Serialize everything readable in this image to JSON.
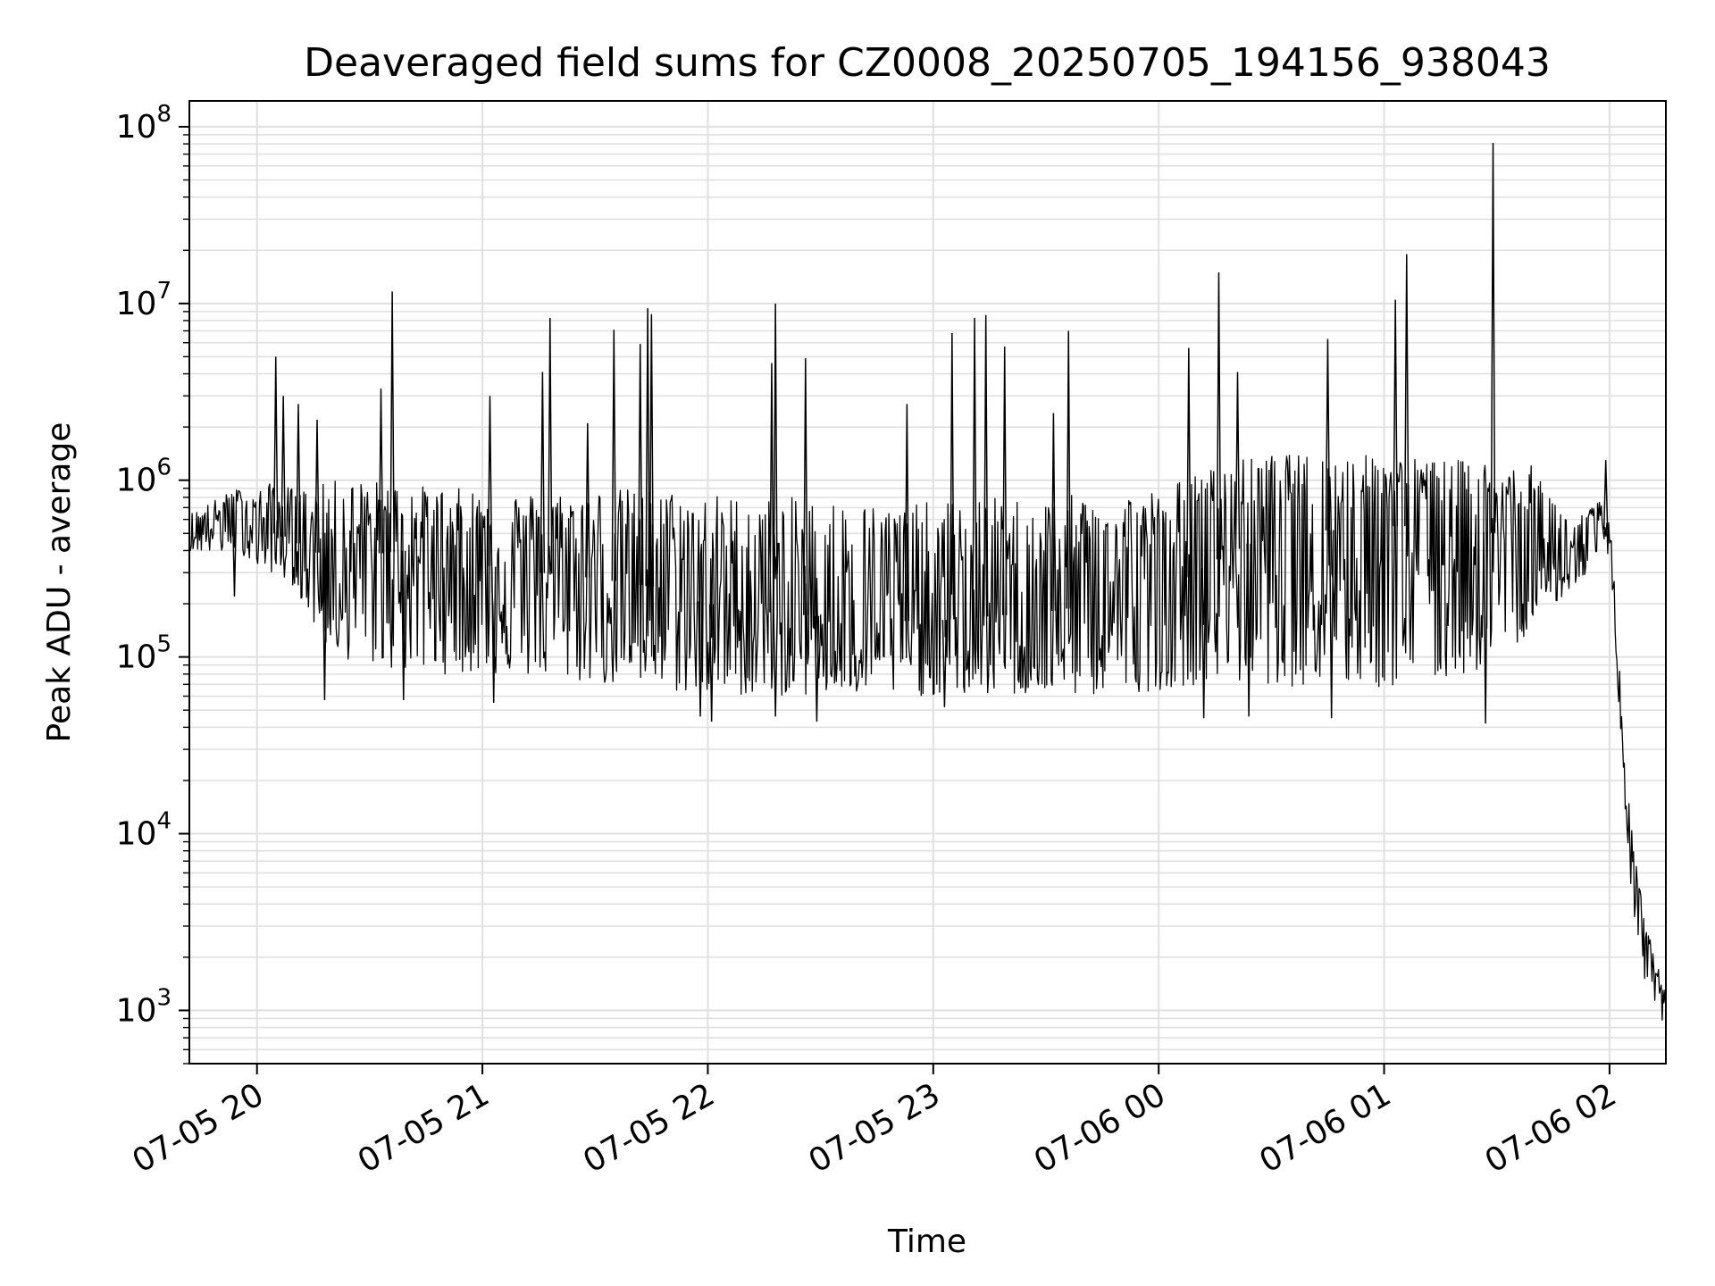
{
  "chart_data": {
    "type": "line",
    "title": "Deaveraged field sums for CZ0008_20250705_194156_938043",
    "xlabel": "Time",
    "ylabel": "Peak ADU - average",
    "yscale": "log",
    "ylim": [
      500,
      140000000
    ],
    "xlim": [
      "2025-07-05 19:42",
      "2025-07-06 02:15"
    ],
    "grid": true,
    "line_color": "#000000",
    "grid_color": "#e0e0e0",
    "x_ticks": [
      {
        "value": "2025-07-05 20:00",
        "label": "07-05 20"
      },
      {
        "value": "2025-07-05 21:00",
        "label": "07-05 21"
      },
      {
        "value": "2025-07-05 22:00",
        "label": "07-05 22"
      },
      {
        "value": "2025-07-05 23:00",
        "label": "07-05 23"
      },
      {
        "value": "2025-07-06 00:00",
        "label": "07-06 00"
      },
      {
        "value": "2025-07-06 01:00",
        "label": "07-06 01"
      },
      {
        "value": "2025-07-06 02:00",
        "label": "07-06 02"
      }
    ],
    "y_ticks": [
      {
        "value": 1000,
        "base": "10",
        "exp": "3"
      },
      {
        "value": 10000,
        "base": "10",
        "exp": "4"
      },
      {
        "value": 100000,
        "base": "10",
        "exp": "5"
      },
      {
        "value": 1000000,
        "base": "10",
        "exp": "6"
      },
      {
        "value": 10000000,
        "base": "10",
        "exp": "7"
      },
      {
        "value": 100000000,
        "base": "10",
        "exp": "8"
      }
    ],
    "series": [
      {
        "x": [
          "2025-07-05 19:42",
          "2025-07-05 19:50",
          "2025-07-05 19:55",
          "2025-07-05 19:58",
          "2025-07-05 20:01",
          "2025-07-05 20:05",
          "2025-07-05 20:10",
          "2025-07-05 20:15",
          "2025-07-05 20:20",
          "2025-07-05 20:30",
          "2025-07-05 20:40",
          "2025-07-05 20:50",
          "2025-07-05 21:00",
          "2025-07-05 21:15",
          "2025-07-05 21:30",
          "2025-07-05 21:45",
          "2025-07-05 22:00",
          "2025-07-05 22:15",
          "2025-07-05 22:30",
          "2025-07-05 22:45",
          "2025-07-05 23:00",
          "2025-07-05 23:15",
          "2025-07-05 23:30",
          "2025-07-05 23:45",
          "2025-07-06 00:00",
          "2025-07-06 00:10",
          "2025-07-06 00:20",
          "2025-07-06 00:30",
          "2025-07-06 00:45",
          "2025-07-06 01:00",
          "2025-07-06 01:15",
          "2025-07-06 01:30",
          "2025-07-06 01:40",
          "2025-07-06 01:50",
          "2025-07-06 01:55",
          "2025-07-06 01:58",
          "2025-07-06 02:00",
          "2025-07-06 02:02",
          "2025-07-06 02:04",
          "2025-07-06 02:06",
          "2025-07-06 02:08",
          "2025-07-06 02:10",
          "2025-07-06 02:12",
          "2025-07-06 02:15"
        ],
        "y": [
          500000,
          600000,
          700000,
          650000,
          550000,
          500000,
          450000,
          400000,
          350000,
          380000,
          400000,
          350000,
          330000,
          300000,
          280000,
          250000,
          200000,
          180000,
          170000,
          160000,
          160000,
          170000,
          180000,
          200000,
          220000,
          300000,
          400000,
          500000,
          520000,
          550000,
          550000,
          500000,
          350000,
          350000,
          400000,
          550000,
          500000,
          100000,
          20000,
          8000,
          3000,
          2000,
          1500,
          1000
        ],
        "envelope_low": [
          400000,
          380000,
          400000,
          350000,
          300000,
          300000,
          250000,
          150000,
          100000,
          90000,
          80000,
          80000,
          80000,
          75000,
          70000,
          65000,
          60000,
          60000,
          60000,
          60000,
          60000,
          60000,
          60000,
          60000,
          65000,
          70000,
          70000,
          70000,
          65000,
          65000,
          70000,
          90000,
          150000,
          250000,
          300000,
          400000,
          380000,
          80000,
          15000,
          4000,
          2000,
          1200,
          1000,
          800
        ],
        "envelope_high": [
          650000,
          800000,
          900000,
          800000,
          900000,
          1000000,
          900000,
          900000,
          1000000,
          1000000,
          950000,
          900000,
          900000,
          850000,
          900000,
          900000,
          850000,
          800000,
          800000,
          750000,
          750000,
          800000,
          800000,
          850000,
          900000,
          1100000,
          1300000,
          1400000,
          1400000,
          1400000,
          1300000,
          1300000,
          1200000,
          600000,
          700000,
          800000,
          700000,
          150000,
          30000,
          10000,
          5000,
          3000,
          2000,
          1300
        ],
        "spikes": [
          {
            "x": "2025-07-05 20:05",
            "y": 5000000
          },
          {
            "x": "2025-07-05 20:07",
            "y": 3000000
          },
          {
            "x": "2025-07-05 20:11",
            "y": 2700000
          },
          {
            "x": "2025-07-05 20:16",
            "y": 2200000
          },
          {
            "x": "2025-07-05 20:36",
            "y": 11700000
          },
          {
            "x": "2025-07-05 20:33",
            "y": 3300000
          },
          {
            "x": "2025-07-05 21:02",
            "y": 3000000
          },
          {
            "x": "2025-07-05 21:16",
            "y": 4100000
          },
          {
            "x": "2025-07-05 21:18",
            "y": 8300000
          },
          {
            "x": "2025-07-05 21:28",
            "y": 2100000
          },
          {
            "x": "2025-07-05 21:35",
            "y": 7100000
          },
          {
            "x": "2025-07-05 21:42",
            "y": 5900000
          },
          {
            "x": "2025-07-05 21:44",
            "y": 9400000
          },
          {
            "x": "2025-07-05 21:45",
            "y": 8700000
          },
          {
            "x": "2025-07-05 22:17",
            "y": 4600000
          },
          {
            "x": "2025-07-05 22:18",
            "y": 10000000
          },
          {
            "x": "2025-07-05 22:26",
            "y": 4900000
          },
          {
            "x": "2025-07-05 22:53",
            "y": 2700000
          },
          {
            "x": "2025-07-05 23:05",
            "y": 6800000
          },
          {
            "x": "2025-07-05 23:11",
            "y": 8300000
          },
          {
            "x": "2025-07-05 23:14",
            "y": 8600000
          },
          {
            "x": "2025-07-05 23:19",
            "y": 5700000
          },
          {
            "x": "2025-07-05 23:32",
            "y": 2400000
          },
          {
            "x": "2025-07-05 23:36",
            "y": 7000000
          },
          {
            "x": "2025-07-06 00:08",
            "y": 5600000
          },
          {
            "x": "2025-07-06 00:16",
            "y": 15000000
          },
          {
            "x": "2025-07-06 00:21",
            "y": 4100000
          },
          {
            "x": "2025-07-06 00:45",
            "y": 6300000
          },
          {
            "x": "2025-07-06 01:03",
            "y": 10500000
          },
          {
            "x": "2025-07-06 01:06",
            "y": 19000000
          },
          {
            "x": "2025-07-06 01:29",
            "y": 81000000
          },
          {
            "x": "2025-07-06 01:59",
            "y": 1300000
          }
        ],
        "dips": [
          {
            "x": "2025-07-05 19:54",
            "y": 220000
          },
          {
            "x": "2025-07-05 20:18",
            "y": 57000
          },
          {
            "x": "2025-07-05 20:39",
            "y": 57000
          },
          {
            "x": "2025-07-05 21:03",
            "y": 55000
          },
          {
            "x": "2025-07-05 21:58",
            "y": 46000
          },
          {
            "x": "2025-07-05 22:01",
            "y": 43000
          },
          {
            "x": "2025-07-05 22:18",
            "y": 46000
          },
          {
            "x": "2025-07-05 22:29",
            "y": 43000
          },
          {
            "x": "2025-07-05 23:03",
            "y": 52000
          },
          {
            "x": "2025-07-06 00:12",
            "y": 45000
          },
          {
            "x": "2025-07-06 00:24",
            "y": 46000
          },
          {
            "x": "2025-07-06 00:46",
            "y": 45000
          },
          {
            "x": "2025-07-06 01:27",
            "y": 42000
          }
        ]
      }
    ]
  }
}
